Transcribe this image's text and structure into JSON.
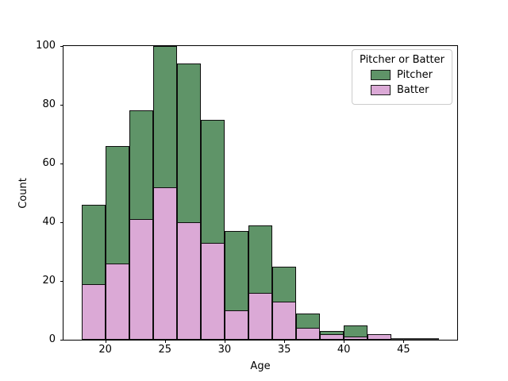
{
  "chart_data": {
    "type": "bar",
    "subtype": "histogram-layered",
    "title": "",
    "xlabel": "Age",
    "ylabel": "Count",
    "bin_start": 18,
    "bin_width": 2,
    "bin_edges": [
      18,
      20,
      22,
      24,
      26,
      28,
      30,
      32,
      34,
      36,
      38,
      40,
      42,
      44,
      46,
      48
    ],
    "series": [
      {
        "name": "Pitcher",
        "color": "#5f9468",
        "values": [
          46,
          66,
          78,
          100,
          94,
          75,
          37,
          39,
          25,
          9,
          3,
          5,
          0,
          0,
          0
        ]
      },
      {
        "name": "Batter",
        "color": "#dba9d6",
        "values": [
          19,
          26,
          41,
          52,
          40,
          33,
          10,
          16,
          13,
          4,
          2,
          1,
          2,
          0,
          0
        ]
      }
    ],
    "xlim": [
      16.5,
      49.5
    ],
    "ylim": [
      0,
      100
    ],
    "x_ticks": [
      20,
      25,
      30,
      35,
      40,
      45
    ],
    "y_ticks": [
      0,
      20,
      40,
      60,
      80,
      100
    ],
    "grid": "off",
    "bar_edge_color": "#0d0d0d",
    "legend": {
      "title": "Pitcher or Batter",
      "position": "upper right",
      "entries": [
        {
          "label": "Pitcher",
          "color": "#5f9468"
        },
        {
          "label": "Batter",
          "color": "#dba9d6"
        }
      ]
    }
  }
}
